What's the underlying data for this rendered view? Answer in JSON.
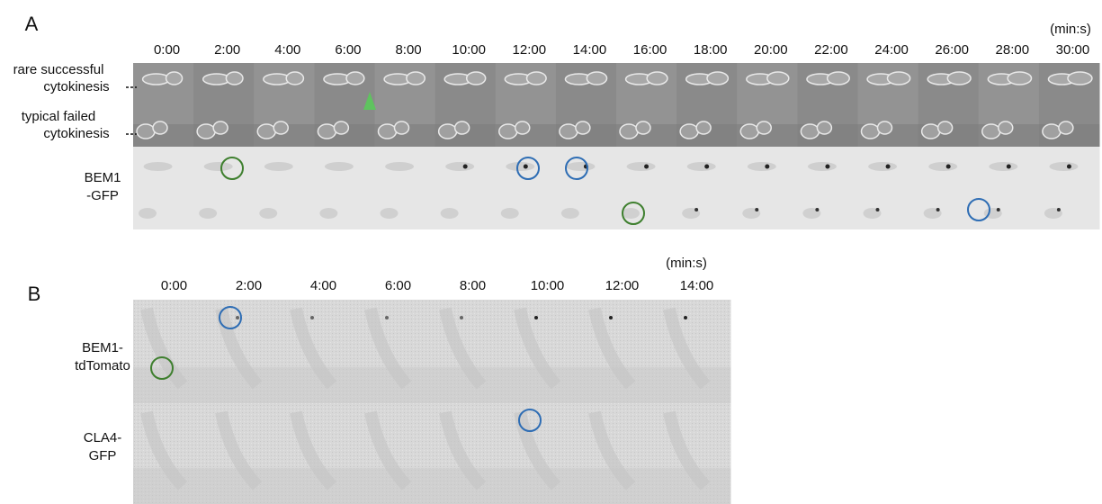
{
  "figure": {
    "panels": [
      {
        "label": "A",
        "unit": "(min:s)",
        "times": [
          "0:00",
          "2:00",
          "4:00",
          "6:00",
          "8:00",
          "10:00",
          "12:00",
          "14:00",
          "16:00",
          "18:00",
          "20:00",
          "22:00",
          "24:00",
          "26:00",
          "28:00",
          "30:00"
        ],
        "row_labels": [
          [
            "rare successful",
            "cytokinesis"
          ],
          [
            "typical failed",
            "cytokinesis"
          ],
          [
            "BEM1",
            "-GFP"
          ]
        ]
      },
      {
        "label": "B",
        "unit": "(min:s)",
        "times": [
          "0:00",
          "2:00",
          "4:00",
          "6:00",
          "8:00",
          "10:00",
          "12:00",
          "14:00"
        ],
        "row_labels": [
          [
            "BEM1-",
            "tdTomato"
          ],
          [
            "CLA4-",
            "GFP"
          ]
        ]
      }
    ]
  }
}
